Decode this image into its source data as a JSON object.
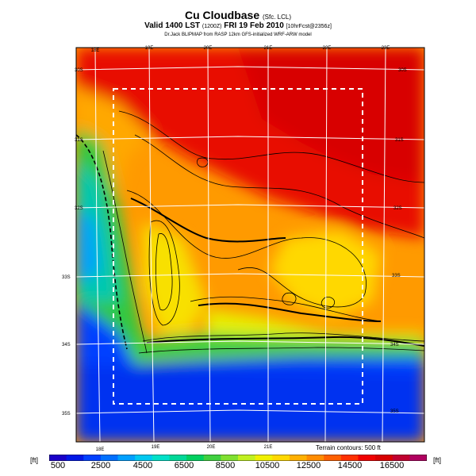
{
  "header": {
    "title": "Cu Cloudbase",
    "title_suffix": "(Sfc. LCL)",
    "valid_line": "Valid 1400 LST",
    "valid_code": "(1200Z)",
    "valid_date": "FRI 19 Feb 2010",
    "valid_fcst": "[10hrFcst@2356z]",
    "credit": "Dr.Jack BLIPMAP from RASP 12km GFS-initialized WRF-ARW model"
  },
  "map": {
    "top_lon_labels": [
      "18E",
      "19E",
      "20E",
      "21E",
      "22E",
      "23E"
    ],
    "bottom_lon_labels": [
      "18E",
      "19E",
      "20E",
      "21E"
    ],
    "left_lat_labels": [
      "30S",
      "31S",
      "32S",
      "33S",
      "34S",
      "35S"
    ],
    "right_lat_labels": [
      "30S",
      "31S",
      "32S",
      "33S",
      "34S",
      "35S"
    ],
    "terrain_note": "Terrain contours: 500 ft"
  },
  "legend": {
    "unit_left": "[ft]",
    "unit_right": "[ft]",
    "tick_labels": [
      "500",
      "2500",
      "4500",
      "6500",
      "8500",
      "10500",
      "12500",
      "14500",
      "16500"
    ],
    "colors": [
      "#1a00c8",
      "#0018e6",
      "#0040ff",
      "#0070ff",
      "#00a0ff",
      "#00c8f0",
      "#00e0c8",
      "#00d898",
      "#00d060",
      "#40d040",
      "#80e030",
      "#c0f020",
      "#f0f000",
      "#ffd800",
      "#ffb000",
      "#ff8c00",
      "#ff6000",
      "#ff3000",
      "#f00000",
      "#d80000",
      "#c00030",
      "#b00060"
    ]
  }
}
